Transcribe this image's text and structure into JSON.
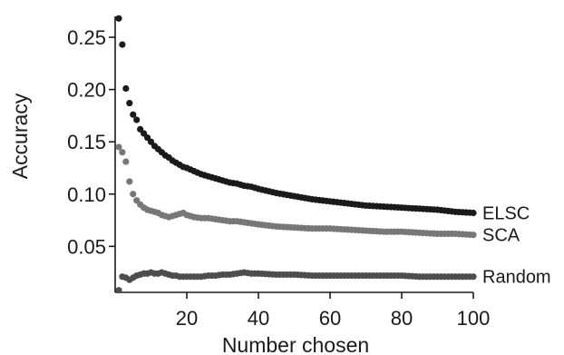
{
  "chart_data": {
    "type": "scatter",
    "title": "",
    "xlabel": "Number chosen",
    "ylabel": "Accuracy",
    "xlim": [
      0,
      100
    ],
    "ylim": [
      0.006,
      0.27
    ],
    "xticks": [
      20,
      40,
      60,
      80,
      100
    ],
    "yticks": [
      0.05,
      0.1,
      0.15,
      0.2,
      0.25
    ],
    "ytick_labels": [
      "0.05",
      "0.10",
      "0.15",
      "0.20",
      "0.25"
    ],
    "grid": false,
    "legend": "direct labels at right end of each series",
    "series": [
      {
        "name": "ELSC",
        "color": "#1a1a1a",
        "x": [
          1,
          2,
          3,
          4,
          5,
          6,
          7,
          8,
          9,
          10,
          11,
          12,
          13,
          14,
          15,
          16,
          17,
          18,
          19,
          20,
          22,
          24,
          26,
          28,
          30,
          32,
          34,
          36,
          38,
          40,
          45,
          50,
          55,
          60,
          65,
          70,
          75,
          80,
          85,
          90,
          95,
          100
        ],
        "y": [
          0.268,
          0.243,
          0.201,
          0.187,
          0.176,
          0.171,
          0.162,
          0.158,
          0.154,
          0.15,
          0.146,
          0.143,
          0.14,
          0.137,
          0.135,
          0.132,
          0.13,
          0.128,
          0.126,
          0.125,
          0.122,
          0.119,
          0.117,
          0.115,
          0.113,
          0.111,
          0.11,
          0.108,
          0.107,
          0.105,
          0.101,
          0.098,
          0.095,
          0.093,
          0.091,
          0.089,
          0.088,
          0.087,
          0.086,
          0.085,
          0.083,
          0.082
        ]
      },
      {
        "name": "SCA",
        "color": "#777777",
        "x": [
          1,
          2,
          3,
          4,
          5,
          6,
          7,
          8,
          9,
          10,
          11,
          12,
          13,
          14,
          15,
          16,
          17,
          18,
          19,
          20,
          21,
          22,
          24,
          26,
          28,
          30,
          32,
          34,
          36,
          38,
          40,
          45,
          50,
          55,
          60,
          65,
          70,
          75,
          80,
          85,
          90,
          95,
          100
        ],
        "y": [
          0.145,
          0.14,
          0.131,
          0.112,
          0.1,
          0.094,
          0.09,
          0.087,
          0.085,
          0.084,
          0.083,
          0.082,
          0.08,
          0.079,
          0.078,
          0.079,
          0.08,
          0.081,
          0.082,
          0.08,
          0.079,
          0.078,
          0.077,
          0.077,
          0.076,
          0.075,
          0.074,
          0.074,
          0.073,
          0.072,
          0.071,
          0.069,
          0.068,
          0.067,
          0.067,
          0.066,
          0.065,
          0.064,
          0.064,
          0.063,
          0.062,
          0.062,
          0.061
        ]
      },
      {
        "name": "Random",
        "color": "#4d4d4d",
        "x": [
          1,
          2,
          3,
          4,
          5,
          6,
          7,
          8,
          9,
          10,
          11,
          12,
          13,
          14,
          15,
          16,
          17,
          18,
          19,
          20,
          22,
          24,
          26,
          28,
          30,
          32,
          34,
          36,
          38,
          40,
          45,
          50,
          55,
          60,
          65,
          70,
          75,
          80,
          85,
          90,
          95,
          100
        ],
        "y": [
          0.008,
          0.021,
          0.02,
          0.018,
          0.02,
          0.022,
          0.023,
          0.024,
          0.024,
          0.025,
          0.024,
          0.024,
          0.025,
          0.024,
          0.023,
          0.022,
          0.022,
          0.021,
          0.021,
          0.021,
          0.021,
          0.021,
          0.022,
          0.022,
          0.023,
          0.023,
          0.024,
          0.025,
          0.024,
          0.024,
          0.023,
          0.023,
          0.022,
          0.022,
          0.022,
          0.022,
          0.022,
          0.022,
          0.021,
          0.021,
          0.021,
          0.021
        ]
      }
    ]
  }
}
